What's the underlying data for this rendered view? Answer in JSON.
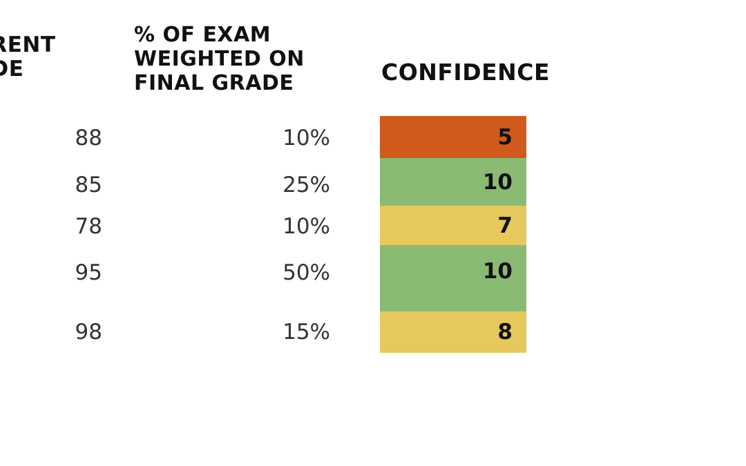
{
  "headers": {
    "current_grade": "RRENT\nADE",
    "exam_weight": "% OF EXAM\nWEIGHTED ON\nFINAL GRADE",
    "confidence": "CONFIDENCE"
  },
  "rows": [
    {
      "grade": "88",
      "weight": "10%",
      "confidence": "5",
      "color": "#d05a1b"
    },
    {
      "grade": "85",
      "weight": "25%",
      "confidence": "10",
      "color": "#89bb73"
    },
    {
      "grade": "78",
      "weight": "10%",
      "confidence": "7",
      "color": "#e6c85c"
    },
    {
      "grade": "95",
      "weight": "50%",
      "confidence": "10",
      "color": "#89bb73"
    },
    {
      "grade": "98",
      "weight": "15%",
      "confidence": "8",
      "color": "#e6c85c"
    }
  ]
}
